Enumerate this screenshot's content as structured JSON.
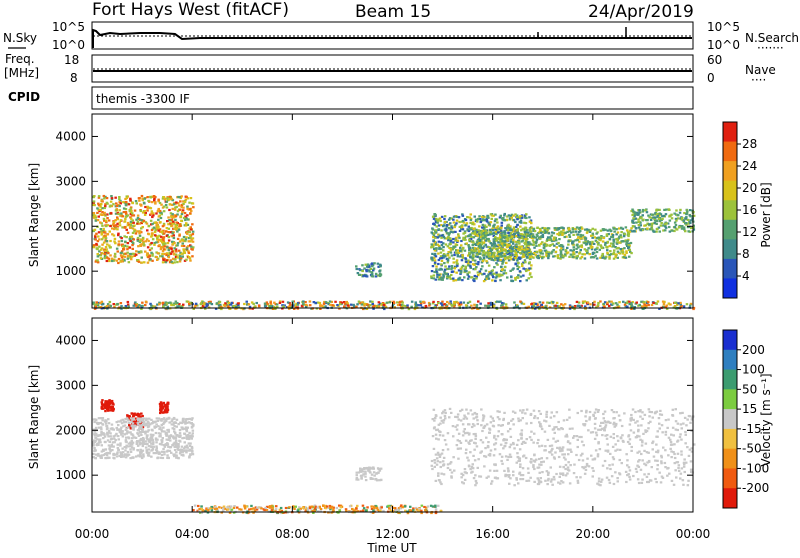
{
  "header": {
    "title": "Fort Hays West (fitACF)",
    "beam": "Beam 15",
    "date": "24/Apr/2019"
  },
  "strip1": {
    "left_label": "N.Sky",
    "left_ticks": [
      "10^5",
      "10^0"
    ],
    "right_ticks": [
      "10^5",
      "10^0"
    ],
    "right_label": "N.Search",
    "right_marker": "·······"
  },
  "strip2": {
    "left_label_1": "Freq.",
    "left_label_2": "[MHz]",
    "left_ticks": [
      "18",
      "8"
    ],
    "right_ticks": [
      "60",
      "0"
    ],
    "right_label": "Nave",
    "right_marker": "····"
  },
  "strip3": {
    "left_label": "CPID",
    "text": "themis -3300 IF"
  },
  "panel_power": {
    "ylabel": "Slant Range [km]",
    "yticks": [
      "4000",
      "3000",
      "2000",
      "1000"
    ],
    "colorbar_label": "Power [dB]",
    "colorbar_ticks": [
      "28",
      "24",
      "20",
      "16",
      "12",
      "8",
      "4"
    ]
  },
  "panel_velocity": {
    "ylabel": "Slant Range [km]",
    "yticks": [
      "4000",
      "3000",
      "2000",
      "1000"
    ],
    "colorbar_label": "Velocity [m s⁻¹]",
    "colorbar_ticks": [
      "200",
      "100",
      "50",
      "15",
      "-15",
      "-50",
      "-100",
      "-200"
    ]
  },
  "xaxis": {
    "label": "Time UT",
    "ticks": [
      "00:00",
      "04:00",
      "08:00",
      "12:00",
      "16:00",
      "20:00",
      "00:00"
    ]
  },
  "colors": {
    "power_scale": [
      "#1030e0",
      "#2a56b8",
      "#3f8a8a",
      "#55a070",
      "#9cc23a",
      "#d8c21a",
      "#f0a020",
      "#f06a10",
      "#e02010"
    ],
    "velocity_scale": [
      "#1a2fd0",
      "#2f7fc0",
      "#3c9c70",
      "#7ccc40",
      "#c8c8c8",
      "#f0c040",
      "#f09018",
      "#f05a10",
      "#e01a0a"
    ]
  },
  "chart_data": [
    {
      "type": "heatmap",
      "title": "",
      "xlabel": "Time UT",
      "ylabel": "Slant Range [km]",
      "xlim": [
        "00:00",
        "24:00"
      ],
      "ylim": [
        180,
        4500
      ],
      "zlabel": "Power [dB]",
      "zlim": [
        0,
        32
      ],
      "features": [
        {
          "x": [
            "00:00",
            "04:00"
          ],
          "y": [
            1200,
            2700
          ],
          "z": [
            12,
            30
          ]
        },
        {
          "x": [
            "10:30",
            "11:30"
          ],
          "y": [
            900,
            1200
          ],
          "z": [
            4,
            16
          ]
        },
        {
          "x": [
            "13:30",
            "17:30"
          ],
          "y": [
            800,
            2300
          ],
          "z": [
            4,
            20
          ]
        },
        {
          "x": [
            "15:00",
            "21:30"
          ],
          "y": [
            1300,
            2000
          ],
          "z": [
            8,
            20
          ]
        },
        {
          "x": [
            "21:30",
            "24:00"
          ],
          "y": [
            1900,
            2400
          ],
          "z": [
            8,
            18
          ]
        },
        {
          "x": [
            "00:00",
            "24:00"
          ],
          "y": [
            180,
            350
          ],
          "z": [
            4,
            30
          ]
        }
      ]
    },
    {
      "type": "heatmap",
      "title": "",
      "xlabel": "Time UT",
      "ylabel": "Slant Range [km]",
      "xlim": [
        "00:00",
        "24:00"
      ],
      "ylim": [
        180,
        4500
      ],
      "zlabel": "Velocity [m s⁻¹]",
      "zlim": [
        -250,
        250
      ],
      "features": [
        {
          "x": [
            "00:20",
            "00:50"
          ],
          "y": [
            2450,
            2700
          ],
          "z": [
            -250,
            -150
          ]
        },
        {
          "x": [
            "01:20",
            "02:00"
          ],
          "y": [
            2050,
            2400
          ],
          "z": [
            -250,
            -150
          ]
        },
        {
          "x": [
            "02:40",
            "03:00"
          ],
          "y": [
            2400,
            2650
          ],
          "z": [
            -250,
            -150
          ]
        },
        {
          "x": [
            "00:00",
            "04:00"
          ],
          "y": [
            1400,
            2300
          ],
          "z": [
            -15,
            15
          ]
        },
        {
          "x": [
            "10:30",
            "11:30"
          ],
          "y": [
            900,
            1200
          ],
          "z": [
            -15,
            15
          ]
        },
        {
          "x": [
            "13:30",
            "24:00"
          ],
          "y": [
            800,
            2500
          ],
          "z": [
            -15,
            15
          ]
        },
        {
          "x": [
            "04:00",
            "14:00"
          ],
          "y": [
            180,
            350
          ],
          "z": [
            -100,
            50
          ]
        }
      ]
    }
  ]
}
